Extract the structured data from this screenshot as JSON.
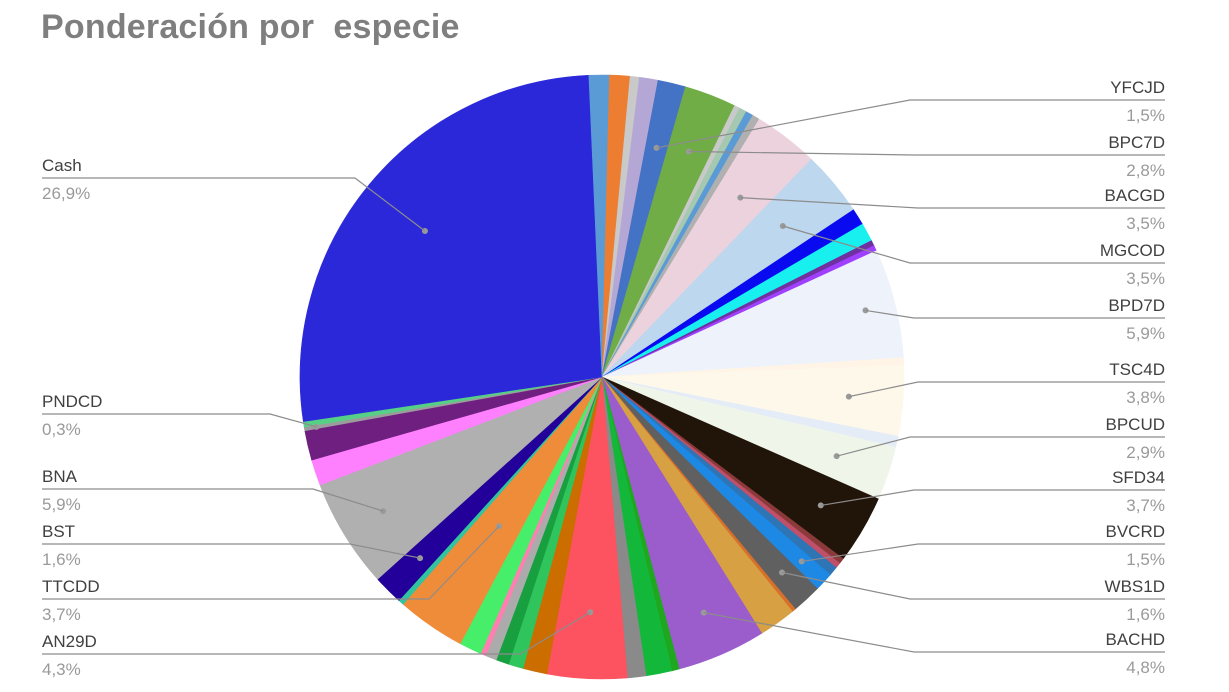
{
  "chart_data": {
    "type": "pie",
    "title": "Ponderación por  especie",
    "labeled_slices": [
      {
        "name": "YFCJD",
        "value": 1.5,
        "label": "1,5%",
        "side": "right"
      },
      {
        "name": "BPC7D",
        "value": 2.8,
        "label": "2,8%",
        "side": "right"
      },
      {
        "name": "BACGD",
        "value": 3.5,
        "label": "3,5%",
        "side": "right"
      },
      {
        "name": "MGCOD",
        "value": 3.5,
        "label": "3,5%",
        "side": "right"
      },
      {
        "name": "BPD7D",
        "value": 5.9,
        "label": "5,9%",
        "side": "right"
      },
      {
        "name": "TSC4D",
        "value": 3.8,
        "label": "3,8%",
        "side": "right"
      },
      {
        "name": "BPCUD",
        "value": 2.9,
        "label": "2,9%",
        "side": "right"
      },
      {
        "name": "SFD34",
        "value": 3.7,
        "label": "3,7%",
        "side": "right"
      },
      {
        "name": "BVCRD",
        "value": 1.5,
        "label": "1,5%",
        "side": "right"
      },
      {
        "name": "WBS1D",
        "value": 1.6,
        "label": "1,6%",
        "side": "right"
      },
      {
        "name": "BACHD",
        "value": 4.8,
        "label": "4,8%",
        "side": "right"
      },
      {
        "name": "AN29D",
        "value": 4.3,
        "label": "4,3%",
        "side": "left"
      },
      {
        "name": "TTCDD",
        "value": 3.7,
        "label": "3,7%",
        "side": "left"
      },
      {
        "name": "BST",
        "value": 1.6,
        "label": "1,6%",
        "side": "left"
      },
      {
        "name": "BNA",
        "value": 5.9,
        "label": "5,9%",
        "side": "left"
      },
      {
        "name": "PNDCD",
        "value": 0.3,
        "label": "0,3%",
        "side": "left"
      },
      {
        "name": "Cash",
        "value": 26.9,
        "label": "26,9%",
        "side": "left"
      }
    ],
    "slices": [
      {
        "value": 0.4,
        "color": "#5b9bd5"
      },
      {
        "value": 1.1,
        "color": "#ed7d31"
      },
      {
        "value": 0.5,
        "color": "#c9c9c9"
      },
      {
        "value": 1.0,
        "color": "#b4a7d6"
      },
      {
        "value": 1.5,
        "color": "#4472c4"
      },
      {
        "value": 2.8,
        "color": "#70ad47"
      },
      {
        "value": 0.3,
        "color": "#c9c9c9"
      },
      {
        "value": 0.4,
        "color": "#a5c8b0"
      },
      {
        "value": 0.4,
        "color": "#5b9bd5"
      },
      {
        "value": 0.4,
        "color": "#b0b0b0"
      },
      {
        "value": 3.5,
        "color": "#ecd2dc"
      },
      {
        "value": 3.5,
        "color": "#bdd7ee"
      },
      {
        "value": 0.9,
        "color": "#0a0af0"
      },
      {
        "value": 1.0,
        "color": "#18f0f0"
      },
      {
        "value": 0.3,
        "color": "#7030a0"
      },
      {
        "value": 0.3,
        "color": "#a040ff"
      },
      {
        "value": 5.9,
        "color": "#eef2fa"
      },
      {
        "value": 0.4,
        "color": "#fff4e6"
      },
      {
        "value": 3.8,
        "color": "#fdf8ea"
      },
      {
        "value": 0.6,
        "color": "#e4ecf7"
      },
      {
        "value": 2.9,
        "color": "#f0f5ea"
      },
      {
        "value": 3.7,
        "color": "#21150a"
      },
      {
        "value": 0.3,
        "color": "#8b3a3a"
      },
      {
        "value": 0.3,
        "color": "#c0506a"
      },
      {
        "value": 0.5,
        "color": "#2e75b6"
      },
      {
        "value": 1.0,
        "color": "#1e88e5"
      },
      {
        "value": 1.6,
        "color": "#606060"
      },
      {
        "value": 0.2,
        "color": "#d86f2a"
      },
      {
        "value": 2.0,
        "color": "#d6a043"
      },
      {
        "value": 4.8,
        "color": "#9b5ccc"
      },
      {
        "value": 0.4,
        "color": "#1fa81f"
      },
      {
        "value": 1.4,
        "color": "#13b83a"
      },
      {
        "value": 1.0,
        "color": "#8a8a8a"
      },
      {
        "value": 4.3,
        "color": "#fd5260"
      },
      {
        "value": 1.3,
        "color": "#cc6d00"
      },
      {
        "value": 0.8,
        "color": "#30c45c"
      },
      {
        "value": 0.7,
        "color": "#18a040"
      },
      {
        "value": 0.6,
        "color": "#ababab"
      },
      {
        "value": 0.3,
        "color": "#ff7fb0"
      },
      {
        "value": 1.2,
        "color": "#47ee6a"
      },
      {
        "value": 3.7,
        "color": "#ef8c3a"
      },
      {
        "value": 0.3,
        "color": "#30c4a0"
      },
      {
        "value": 1.6,
        "color": "#220099"
      },
      {
        "value": 5.9,
        "color": "#b0b0b0"
      },
      {
        "value": 1.4,
        "color": "#ff80ff"
      },
      {
        "value": 1.6,
        "color": "#6f1f7f"
      },
      {
        "value": 0.2,
        "color": "#9c9c9c"
      },
      {
        "value": 0.3,
        "color": "#56d086"
      },
      {
        "value": 26.9,
        "color": "#2a28d8"
      },
      {
        "value": 0.7,
        "color": "#5b9bd5"
      }
    ],
    "legend": "none (labels with leader lines)"
  }
}
